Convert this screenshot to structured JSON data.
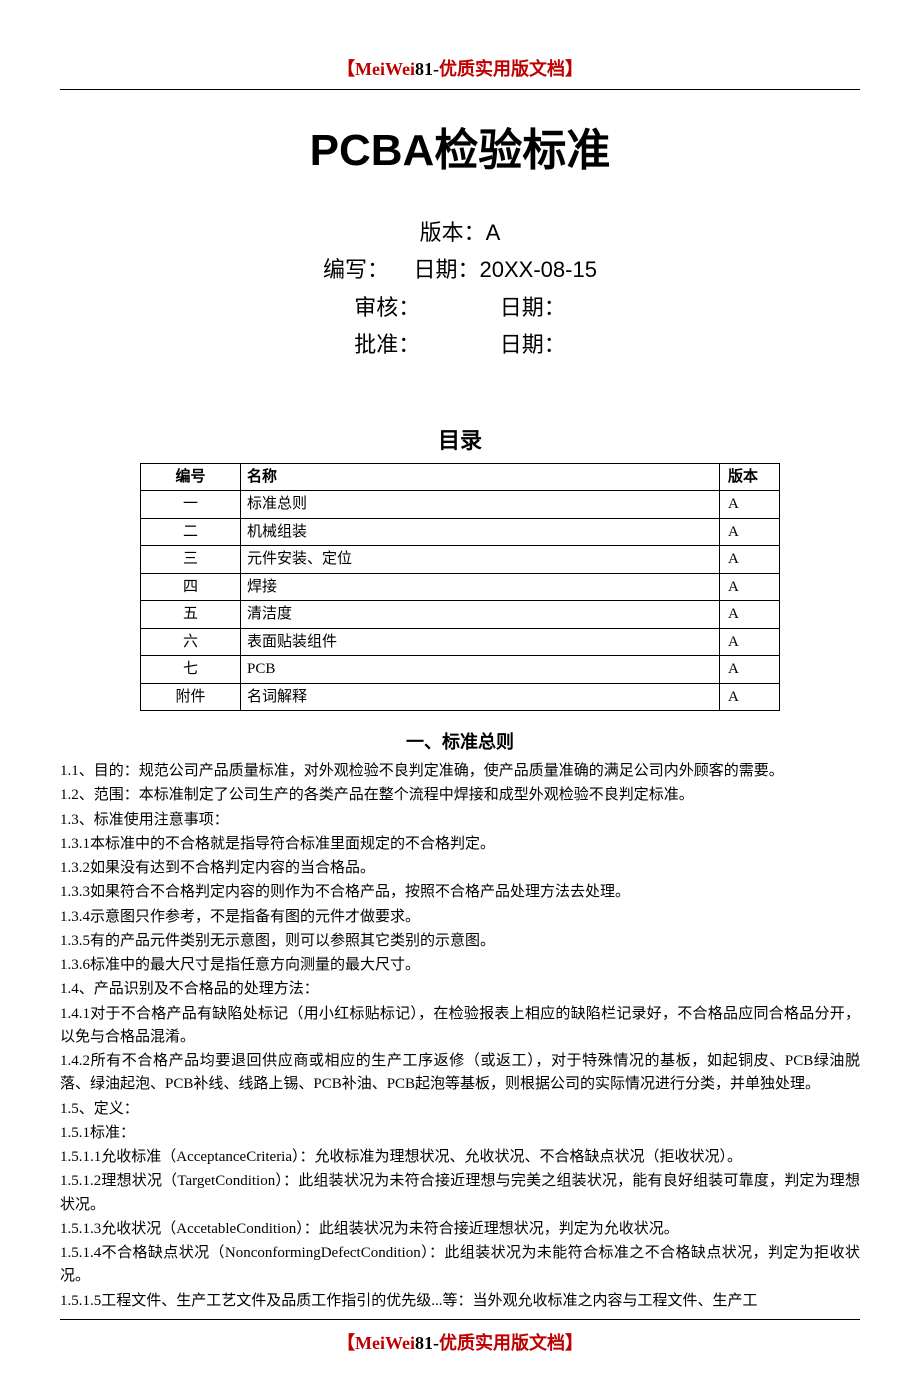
{
  "brand": {
    "left": "【MeiWei",
    "mid": "81-",
    "right": "优质实用版文档】"
  },
  "title": "PCBA检验标准",
  "meta": {
    "version_label": "版本：",
    "version_value": "A",
    "author_label": "编写：",
    "author_date_label": "日期：",
    "author_date_value": "20XX-08-15",
    "review_label": "审核：",
    "review_date_label": "日期：",
    "approve_label": "批准：",
    "approve_date_label": "日期："
  },
  "toc": {
    "title": "目录",
    "headers": {
      "num": "编号",
      "name": "名称",
      "ver": "版本"
    },
    "rows": [
      {
        "num": "一",
        "name": "标准总则",
        "ver": "A"
      },
      {
        "num": "二",
        "name": "机械组装",
        "ver": "A"
      },
      {
        "num": "三",
        "name": "元件安装、定位",
        "ver": "A"
      },
      {
        "num": "四",
        "name": "焊接",
        "ver": "A"
      },
      {
        "num": "五",
        "name": "清洁度",
        "ver": "A"
      },
      {
        "num": "六",
        "name": "表面贴装组件",
        "ver": "A"
      },
      {
        "num": "七",
        "name": "PCB",
        "ver": "A"
      },
      {
        "num": "附件",
        "name": "名词解释",
        "ver": "A"
      }
    ]
  },
  "section1": {
    "title": "一、标准总则",
    "paras": [
      "1.1、目的：规范公司产品质量标准，对外观检验不良判定准确，使产品质量准确的满足公司内外顾客的需要。",
      "1.2、范围：本标准制定了公司生产的各类产品在整个流程中焊接和成型外观检验不良判定标准。",
      "1.3、标准使用注意事项：",
      "1.3.1本标准中的不合格就是指导符合标准里面规定的不合格判定。",
      "1.3.2如果没有达到不合格判定内容的当合格品。",
      "1.3.3如果符合不合格判定内容的则作为不合格产品，按照不合格产品处理方法去处理。",
      "1.3.4示意图只作参考，不是指备有图的元件才做要求。",
      "1.3.5有的产品元件类别无示意图，则可以参照其它类别的示意图。",
      "1.3.6标准中的最大尺寸是指任意方向测量的最大尺寸。",
      "1.4、产品识别及不合格品的处理方法：",
      "1.4.1对于不合格产品有缺陷处标记（用小红标贴标记），在检验报表上相应的缺陷栏记录好，不合格品应同合格品分开，以免与合格品混淆。",
      "1.4.2所有不合格产品均要退回供应商或相应的生产工序返修（或返工），对于特殊情况的基板，如起铜皮、PCB绿油脱落、绿油起泡、PCB补线、线路上锡、PCB补油、PCB起泡等基板，则根据公司的实际情况进行分类，并单独处理。",
      "1.5、定义：",
      "1.5.1标准：",
      "1.5.1.1允收标准（AcceptanceCriteria）：允收标准为理想状况、允收状况、不合格缺点状况（拒收状况）。",
      "1.5.1.2理想状况（TargetCondition）：此组装状况为未符合接近理想与完美之组装状况，能有良好组装可靠度，判定为理想状况。",
      "1.5.1.3允收状况（AccetableCondition）：此组装状况为未符合接近理想状况，判定为允收状况。",
      "1.5.1.4不合格缺点状况（NonconformingDefectCondition）：此组装状况为未能符合标准之不合格缺点状况，判定为拒收状况。",
      "1.5.1.5工程文件、生产工艺文件及品质工作指引的优先级...等：当外观允收标准之内容与工程文件、生产工"
    ]
  }
}
